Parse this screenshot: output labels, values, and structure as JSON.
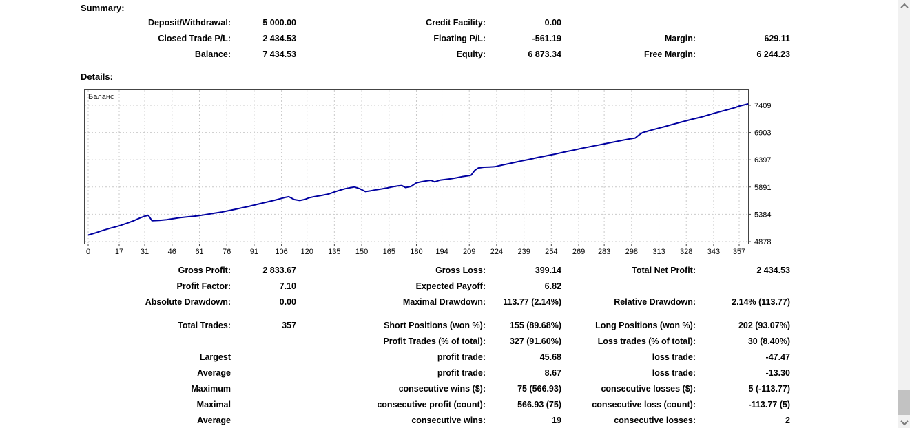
{
  "summary": {
    "title": "Summary:",
    "rows": [
      [
        "Deposit/Withdrawal:",
        "5 000.00",
        "Credit Facility:",
        "0.00",
        "",
        ""
      ],
      [
        "Closed Trade P/L:",
        "2 434.53",
        "Floating P/L:",
        "-561.19",
        "Margin:",
        "629.11"
      ],
      [
        "Balance:",
        "7 434.53",
        "Equity:",
        "6 873.34",
        "Free Margin:",
        "6 244.23"
      ]
    ]
  },
  "details": {
    "title": "Details:"
  },
  "chart_data": {
    "type": "line",
    "title": "Баланс",
    "legend_position": "top-left-inside",
    "grid": true,
    "line_color": "#0000A0",
    "grid_color": "#c9c9c9",
    "border_color": "#444444",
    "x_ticks": [
      0,
      17,
      31,
      46,
      61,
      76,
      91,
      106,
      120,
      135,
      150,
      165,
      180,
      194,
      209,
      224,
      239,
      254,
      269,
      283,
      298,
      313,
      328,
      343,
      357
    ],
    "y_ticks": [
      4878,
      5384,
      5891,
      6397,
      6903,
      7409
    ],
    "xlim": [
      0,
      362
    ],
    "ylim": [
      4827,
      7703
    ],
    "series": [
      {
        "name": "Баланс",
        "points": [
          [
            0,
            5000
          ],
          [
            4,
            5040
          ],
          [
            8,
            5085
          ],
          [
            12,
            5125
          ],
          [
            17,
            5170
          ],
          [
            21,
            5215
          ],
          [
            25,
            5265
          ],
          [
            28,
            5310
          ],
          [
            31,
            5350
          ],
          [
            33,
            5365
          ],
          [
            35,
            5265
          ],
          [
            39,
            5272
          ],
          [
            43,
            5285
          ],
          [
            46,
            5300
          ],
          [
            50,
            5320
          ],
          [
            54,
            5335
          ],
          [
            58,
            5348
          ],
          [
            61,
            5360
          ],
          [
            65,
            5382
          ],
          [
            69,
            5403
          ],
          [
            73,
            5424
          ],
          [
            76,
            5445
          ],
          [
            80,
            5473
          ],
          [
            84,
            5502
          ],
          [
            88,
            5530
          ],
          [
            91,
            5555
          ],
          [
            95,
            5588
          ],
          [
            99,
            5620
          ],
          [
            103,
            5652
          ],
          [
            106,
            5680
          ],
          [
            108,
            5698
          ],
          [
            110,
            5710
          ],
          [
            113,
            5658
          ],
          [
            116,
            5640
          ],
          [
            119,
            5662
          ],
          [
            121,
            5690
          ],
          [
            124,
            5712
          ],
          [
            128,
            5735
          ],
          [
            132,
            5762
          ],
          [
            135,
            5800
          ],
          [
            138,
            5832
          ],
          [
            141,
            5860
          ],
          [
            144,
            5880
          ],
          [
            146,
            5892
          ],
          [
            149,
            5858
          ],
          [
            152,
            5806
          ],
          [
            155,
            5822
          ],
          [
            158,
            5840
          ],
          [
            161,
            5856
          ],
          [
            164,
            5874
          ],
          [
            167,
            5896
          ],
          [
            170,
            5912
          ],
          [
            172,
            5918
          ],
          [
            174,
            5882
          ],
          [
            177,
            5900
          ],
          [
            180,
            5968
          ],
          [
            183,
            5990
          ],
          [
            186,
            6008
          ],
          [
            188,
            6016
          ],
          [
            190,
            5986
          ],
          [
            193,
            6020
          ],
          [
            196,
            6032
          ],
          [
            199,
            6044
          ],
          [
            202,
            6062
          ],
          [
            205,
            6082
          ],
          [
            208,
            6098
          ],
          [
            210,
            6110
          ],
          [
            212,
            6200
          ],
          [
            214,
            6245
          ],
          [
            217,
            6258
          ],
          [
            220,
            6262
          ],
          [
            223,
            6268
          ],
          [
            226,
            6290
          ],
          [
            229,
            6312
          ],
          [
            232,
            6334
          ],
          [
            235,
            6356
          ],
          [
            238,
            6378
          ],
          [
            241,
            6398
          ],
          [
            244,
            6420
          ],
          [
            247,
            6442
          ],
          [
            250,
            6462
          ],
          [
            253,
            6482
          ],
          [
            256,
            6502
          ],
          [
            259,
            6525
          ],
          [
            262,
            6548
          ],
          [
            265,
            6568
          ],
          [
            268,
            6590
          ],
          [
            271,
            6612
          ],
          [
            274,
            6632
          ],
          [
            277,
            6652
          ],
          [
            280,
            6672
          ],
          [
            283,
            6692
          ],
          [
            286,
            6712
          ],
          [
            289,
            6732
          ],
          [
            292,
            6752
          ],
          [
            295,
            6772
          ],
          [
            298,
            6790
          ],
          [
            300,
            6800
          ],
          [
            302,
            6855
          ],
          [
            304,
            6900
          ],
          [
            307,
            6930
          ],
          [
            310,
            6958
          ],
          [
            313,
            6985
          ],
          [
            316,
            7012
          ],
          [
            319,
            7040
          ],
          [
            322,
            7068
          ],
          [
            325,
            7095
          ],
          [
            328,
            7122
          ],
          [
            331,
            7148
          ],
          [
            334,
            7172
          ],
          [
            337,
            7198
          ],
          [
            340,
            7228
          ],
          [
            343,
            7258
          ],
          [
            346,
            7285
          ],
          [
            349,
            7312
          ],
          [
            352,
            7340
          ],
          [
            355,
            7368
          ],
          [
            357,
            7395
          ],
          [
            362,
            7434
          ]
        ]
      }
    ]
  },
  "stats": {
    "group1": [
      [
        "Gross Profit:",
        "2 833.67",
        "Gross Loss:",
        "399.14",
        "Total Net Profit:",
        "2 434.53"
      ],
      [
        "Profit Factor:",
        "7.10",
        "Expected Payoff:",
        "6.82",
        "",
        ""
      ],
      [
        "Absolute Drawdown:",
        "0.00",
        "Maximal Drawdown:",
        "113.77 (2.14%)",
        "Relative Drawdown:",
        "2.14% (113.77)"
      ]
    ],
    "group2": [
      [
        "Total Trades:",
        "357",
        "Short Positions (won %):",
        "155 (89.68%)",
        "Long Positions (won %):",
        "202 (93.07%)"
      ],
      [
        "",
        "",
        "Profit Trades (% of total):",
        "327 (91.60%)",
        "Loss trades (% of total):",
        "30 (8.40%)"
      ],
      [
        "Largest",
        "",
        "profit trade:",
        "45.68",
        "loss trade:",
        "-47.47"
      ],
      [
        "Average",
        "",
        "profit trade:",
        "8.67",
        "loss trade:",
        "-13.30"
      ],
      [
        "Maximum",
        "",
        "consecutive wins ($):",
        "75 (566.93)",
        "consecutive losses ($):",
        "5 (-113.77)"
      ],
      [
        "Maximal",
        "",
        "consecutive profit (count):",
        "566.93 (75)",
        "consecutive loss (count):",
        "-113.77 (5)"
      ],
      [
        "Average",
        "",
        "consecutive wins:",
        "19",
        "consecutive losses:",
        "2"
      ]
    ]
  },
  "scrollbar": {
    "up_icon": "chevron-up-icon",
    "down_icon": "chevron-down-icon"
  }
}
